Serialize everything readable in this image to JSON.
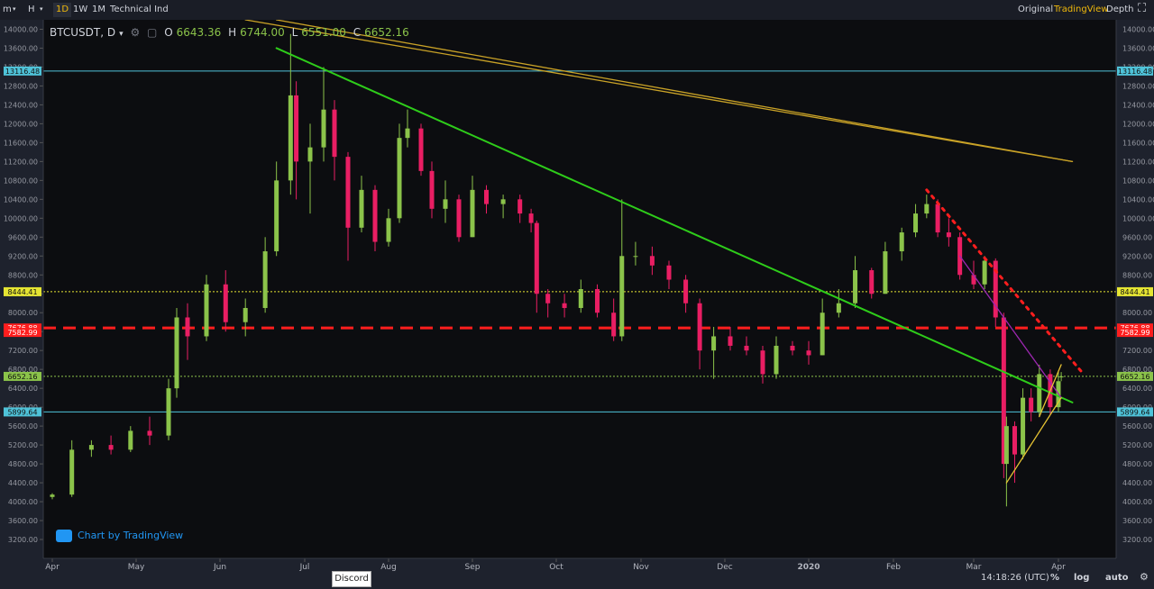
{
  "toolbar": {
    "items": [
      "m",
      "H",
      "1D",
      "1W",
      "1M",
      "Technical Ind"
    ],
    "active": "1D",
    "right_items": [
      "Original",
      "TradingView",
      "Depth"
    ],
    "right_active": "TradingView"
  },
  "legend": {
    "symbol": "BTCUSDT, D",
    "open_label": "O",
    "open": "6643.36",
    "high_label": "H",
    "high": "6744.00",
    "low_label": "L",
    "low": "6551.00",
    "close_label": "C",
    "close": "6652.16"
  },
  "credit": "Chart by TradingView",
  "discord_tag": "Discord",
  "status": {
    "time": "14:18:26 (UTC)",
    "percent": "%",
    "log": "log",
    "auto": "auto"
  },
  "colors": {
    "background": "#0c0d10",
    "up": "#8bc34a",
    "down": "#e91e63",
    "trend_green": "#2ecc1a",
    "trend_gold": "#c9a227",
    "resistance_red": "#ff1e1e",
    "level_yellow": "#e5e533",
    "level_cyan": "#4fc3d9"
  },
  "chart_data": {
    "type": "candlestick",
    "title": "BTCUSDT, D",
    "scale": "linear",
    "x_ticks": [
      "Apr",
      "May",
      "Jun",
      "Jul",
      "Aug",
      "Sep",
      "Oct",
      "Nov",
      "Dec",
      "2020",
      "Feb",
      "Mar",
      "Apr"
    ],
    "y_ticks": [
      3200,
      3600,
      4000,
      4400,
      4800,
      5200,
      5600,
      6000,
      6400,
      6800,
      7200,
      7600,
      8000,
      8400,
      8800,
      9200,
      9600,
      10000,
      10400,
      10800,
      11200,
      11600,
      12000,
      12400,
      12800,
      13200,
      13600,
      14000
    ],
    "ylim": [
      2800,
      14200
    ],
    "price_levels": [
      {
        "label": "13116.48",
        "value": 13116.48,
        "color": "#4fc3d9"
      },
      {
        "label": "8444.41",
        "value": 8444.41,
        "color": "#e5e533"
      },
      {
        "label": "7676.88",
        "value": 7676.88,
        "color": "#ff1e1e"
      },
      {
        "label": "7582.99",
        "value": 7582.99,
        "color": "#ff1e1e"
      },
      {
        "label": "6652.16",
        "value": 6652.16,
        "color": "#8bc34a"
      },
      {
        "label": "5899.64",
        "value": 5899.64,
        "color": "#4fc3d9"
      }
    ],
    "candles": [
      {
        "d": "Apr 01",
        "o": 4100,
        "h": 4180,
        "l": 4050,
        "c": 4150
      },
      {
        "d": "Apr 08",
        "o": 4150,
        "h": 5300,
        "l": 4100,
        "c": 5100
      },
      {
        "d": "Apr 15",
        "o": 5100,
        "h": 5300,
        "l": 4950,
        "c": 5200
      },
      {
        "d": "Apr 22",
        "o": 5200,
        "h": 5400,
        "l": 5000,
        "c": 5100
      },
      {
        "d": "Apr 29",
        "o": 5100,
        "h": 5600,
        "l": 5050,
        "c": 5500
      },
      {
        "d": "May 06",
        "o": 5500,
        "h": 5800,
        "l": 5200,
        "c": 5400
      },
      {
        "d": "May 13",
        "o": 5400,
        "h": 6600,
        "l": 5300,
        "c": 6400
      },
      {
        "d": "May 16",
        "o": 6400,
        "h": 8100,
        "l": 6200,
        "c": 7900
      },
      {
        "d": "May 20",
        "o": 7900,
        "h": 8200,
        "l": 7000,
        "c": 7500
      },
      {
        "d": "May 27",
        "o": 7500,
        "h": 8800,
        "l": 7400,
        "c": 8600
      },
      {
        "d": "Jun 03",
        "o": 8600,
        "h": 8900,
        "l": 7600,
        "c": 7800
      },
      {
        "d": "Jun 10",
        "o": 7800,
        "h": 8300,
        "l": 7500,
        "c": 8100
      },
      {
        "d": "Jun 17",
        "o": 8100,
        "h": 9600,
        "l": 8000,
        "c": 9300
      },
      {
        "d": "Jun 21",
        "o": 9300,
        "h": 11200,
        "l": 9200,
        "c": 10800
      },
      {
        "d": "Jun 26",
        "o": 10800,
        "h": 13900,
        "l": 10500,
        "c": 12600
      },
      {
        "d": "Jun 28",
        "o": 12600,
        "h": 12900,
        "l": 10400,
        "c": 11200
      },
      {
        "d": "Jul 03",
        "o": 11200,
        "h": 12000,
        "l": 10100,
        "c": 11500
      },
      {
        "d": "Jul 08",
        "o": 11500,
        "h": 13200,
        "l": 11200,
        "c": 12300
      },
      {
        "d": "Jul 12",
        "o": 12300,
        "h": 12500,
        "l": 10800,
        "c": 11300
      },
      {
        "d": "Jul 17",
        "o": 11300,
        "h": 11400,
        "l": 9100,
        "c": 9800
      },
      {
        "d": "Jul 22",
        "o": 9800,
        "h": 10900,
        "l": 9700,
        "c": 10600
      },
      {
        "d": "Jul 27",
        "o": 10600,
        "h": 10700,
        "l": 9300,
        "c": 9500
      },
      {
        "d": "Aug 01",
        "o": 9500,
        "h": 10200,
        "l": 9400,
        "c": 10000
      },
      {
        "d": "Aug 05",
        "o": 10000,
        "h": 12000,
        "l": 9900,
        "c": 11700
      },
      {
        "d": "Aug 08",
        "o": 11700,
        "h": 12300,
        "l": 11500,
        "c": 11900
      },
      {
        "d": "Aug 13",
        "o": 11900,
        "h": 12000,
        "l": 10900,
        "c": 11000
      },
      {
        "d": "Aug 17",
        "o": 11000,
        "h": 11200,
        "l": 10000,
        "c": 10200
      },
      {
        "d": "Aug 22",
        "o": 10200,
        "h": 10800,
        "l": 9900,
        "c": 10400
      },
      {
        "d": "Aug 27",
        "o": 10400,
        "h": 10500,
        "l": 9500,
        "c": 9600
      },
      {
        "d": "Sep 01",
        "o": 9600,
        "h": 10900,
        "l": 9600,
        "c": 10600
      },
      {
        "d": "Sep 06",
        "o": 10600,
        "h": 10700,
        "l": 10100,
        "c": 10300
      },
      {
        "d": "Sep 12",
        "o": 10300,
        "h": 10500,
        "l": 10000,
        "c": 10400
      },
      {
        "d": "Sep 18",
        "o": 10400,
        "h": 10500,
        "l": 9900,
        "c": 10100
      },
      {
        "d": "Sep 22",
        "o": 10100,
        "h": 10200,
        "l": 9700,
        "c": 9900
      },
      {
        "d": "Sep 24",
        "o": 9900,
        "h": 9950,
        "l": 8000,
        "c": 8400
      },
      {
        "d": "Sep 28",
        "o": 8400,
        "h": 8500,
        "l": 7900,
        "c": 8200
      },
      {
        "d": "Oct 04",
        "o": 8200,
        "h": 8400,
        "l": 7900,
        "c": 8100
      },
      {
        "d": "Oct 10",
        "o": 8100,
        "h": 8700,
        "l": 8000,
        "c": 8500
      },
      {
        "d": "Oct 16",
        "o": 8500,
        "h": 8600,
        "l": 7900,
        "c": 8000
      },
      {
        "d": "Oct 22",
        "o": 8000,
        "h": 8300,
        "l": 7400,
        "c": 7500
      },
      {
        "d": "Oct 25",
        "o": 7500,
        "h": 10400,
        "l": 7400,
        "c": 9200
      },
      {
        "d": "Oct 30",
        "o": 9200,
        "h": 9500,
        "l": 9000,
        "c": 9200
      },
      {
        "d": "Nov 05",
        "o": 9200,
        "h": 9400,
        "l": 8800,
        "c": 9000
      },
      {
        "d": "Nov 11",
        "o": 9000,
        "h": 9100,
        "l": 8500,
        "c": 8700
      },
      {
        "d": "Nov 17",
        "o": 8700,
        "h": 8800,
        "l": 8000,
        "c": 8200
      },
      {
        "d": "Nov 22",
        "o": 8200,
        "h": 8300,
        "l": 6800,
        "c": 7200
      },
      {
        "d": "Nov 27",
        "o": 7200,
        "h": 7700,
        "l": 6600,
        "c": 7500
      },
      {
        "d": "Dec 03",
        "o": 7500,
        "h": 7700,
        "l": 7200,
        "c": 7300
      },
      {
        "d": "Dec 09",
        "o": 7300,
        "h": 7500,
        "l": 7100,
        "c": 7200
      },
      {
        "d": "Dec 15",
        "o": 7200,
        "h": 7300,
        "l": 6500,
        "c": 6700
      },
      {
        "d": "Dec 20",
        "o": 6700,
        "h": 7500,
        "l": 6600,
        "c": 7300
      },
      {
        "d": "Dec 26",
        "o": 7300,
        "h": 7400,
        "l": 7100,
        "c": 7200
      },
      {
        "d": "Jan 01",
        "o": 7200,
        "h": 7400,
        "l": 6900,
        "c": 7100
      },
      {
        "d": "Jan 06",
        "o": 7100,
        "h": 8300,
        "l": 7100,
        "c": 8000
      },
      {
        "d": "Jan 12",
        "o": 8000,
        "h": 8500,
        "l": 7900,
        "c": 8200
      },
      {
        "d": "Jan 18",
        "o": 8200,
        "h": 9200,
        "l": 8100,
        "c": 8900
      },
      {
        "d": "Jan 24",
        "o": 8900,
        "h": 8950,
        "l": 8300,
        "c": 8400
      },
      {
        "d": "Jan 29",
        "o": 8400,
        "h": 9500,
        "l": 8400,
        "c": 9300
      },
      {
        "d": "Feb 04",
        "o": 9300,
        "h": 9800,
        "l": 9100,
        "c": 9700
      },
      {
        "d": "Feb 09",
        "o": 9700,
        "h": 10300,
        "l": 9600,
        "c": 10100
      },
      {
        "d": "Feb 13",
        "o": 10100,
        "h": 10500,
        "l": 10000,
        "c": 10300
      },
      {
        "d": "Feb 17",
        "o": 10300,
        "h": 10400,
        "l": 9600,
        "c": 9700
      },
      {
        "d": "Feb 21",
        "o": 9700,
        "h": 10000,
        "l": 9400,
        "c": 9600
      },
      {
        "d": "Feb 25",
        "o": 9600,
        "h": 9700,
        "l": 8700,
        "c": 8800
      },
      {
        "d": "Mar 01",
        "o": 8800,
        "h": 9100,
        "l": 8500,
        "c": 8600
      },
      {
        "d": "Mar 05",
        "o": 8600,
        "h": 9200,
        "l": 8500,
        "c": 9100
      },
      {
        "d": "Mar 09",
        "o": 9100,
        "h": 9150,
        "l": 7700,
        "c": 7900
      },
      {
        "d": "Mar 12",
        "o": 7900,
        "h": 8000,
        "l": 4500,
        "c": 4800
      },
      {
        "d": "Mar 13",
        "o": 4800,
        "h": 5800,
        "l": 3900,
        "c": 5600
      },
      {
        "d": "Mar 16",
        "o": 5600,
        "h": 5700,
        "l": 4400,
        "c": 5000
      },
      {
        "d": "Mar 19",
        "o": 5000,
        "h": 6400,
        "l": 4900,
        "c": 6200
      },
      {
        "d": "Mar 22",
        "o": 6200,
        "h": 6400,
        "l": 5700,
        "c": 5900
      },
      {
        "d": "Mar 25",
        "o": 5900,
        "h": 6900,
        "l": 5800,
        "c": 6700
      },
      {
        "d": "Mar 29",
        "o": 6700,
        "h": 6800,
        "l": 5850,
        "c": 6000
      },
      {
        "d": "Apr 01",
        "o": 6000,
        "h": 6750,
        "l": 5900,
        "c": 6550
      },
      {
        "d": "Apr 02",
        "o": 6643.36,
        "h": 6744.0,
        "l": 6551.0,
        "c": 6652.16
      }
    ],
    "trendlines": [
      {
        "name": "green-downtrend",
        "from": [
          "Jun 21",
          13600
        ],
        "to": [
          "Apr 06",
          6100
        ],
        "color": "#2ecc1a",
        "style": "solid"
      },
      {
        "name": "gold-downtrend-1",
        "from": [
          "Jun 10",
          14200
        ],
        "to": [
          "Apr 06",
          11200
        ],
        "color": "#c9a227",
        "style": "solid"
      },
      {
        "name": "gold-downtrend-2",
        "from": [
          "Jun 21",
          14200
        ],
        "to": [
          "Apr 06",
          11200
        ],
        "color": "#c9a227",
        "style": "solid"
      },
      {
        "name": "red-dotted-resistance",
        "from": [
          "Feb 13",
          10600
        ],
        "to": [
          "Apr 10",
          6700
        ],
        "color": "#ff1e1e",
        "style": "dotted"
      },
      {
        "name": "purple-resistance",
        "from": [
          "Feb 25",
          9200
        ],
        "to": [
          "Apr 02",
          6200
        ],
        "color": "#9c27b0",
        "style": "solid"
      },
      {
        "name": "yellow-wedge-support",
        "from": [
          "Mar 13",
          4400
        ],
        "to": [
          "Apr 02",
          6200
        ],
        "color": "#e5c233",
        "style": "solid"
      },
      {
        "name": "yellow-wedge-top",
        "from": [
          "Mar 25",
          5800
        ],
        "to": [
          "Apr 02",
          6900
        ],
        "color": "#e5c233",
        "style": "solid"
      }
    ]
  }
}
